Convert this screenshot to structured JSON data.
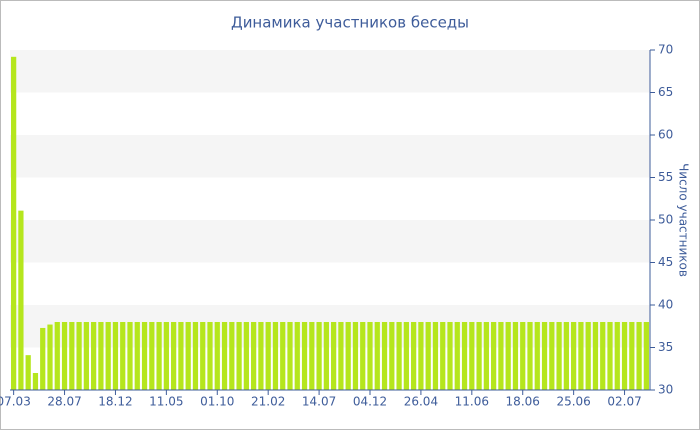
{
  "chart_data": {
    "type": "bar",
    "title": "Динамика участников беседы",
    "y_axis_label": "Число участников",
    "categories": [
      "07.03",
      null,
      null,
      null,
      null,
      null,
      null,
      "28.07",
      null,
      null,
      null,
      null,
      null,
      null,
      "18.12",
      null,
      null,
      null,
      null,
      null,
      null,
      "11.05",
      null,
      null,
      null,
      null,
      null,
      null,
      "01.10",
      null,
      null,
      null,
      null,
      null,
      null,
      "21.02",
      null,
      null,
      null,
      null,
      null,
      null,
      "14.07",
      null,
      null,
      null,
      null,
      null,
      null,
      "04.12",
      null,
      null,
      null,
      null,
      null,
      null,
      "26.04",
      null,
      null,
      null,
      null,
      null,
      null,
      "11.06",
      null,
      null,
      null,
      null,
      null,
      null,
      "18.06",
      null,
      null,
      null,
      null,
      null,
      null,
      "25.06",
      null,
      null,
      null,
      null,
      null,
      null,
      "02.07",
      null,
      null,
      null
    ],
    "values": [
      69.2,
      51.1,
      34.1,
      32.0,
      37.3,
      37.7,
      38,
      38,
      38,
      38,
      38,
      38,
      38,
      38,
      38,
      38,
      38,
      38,
      38,
      38,
      38,
      38,
      38,
      38,
      38,
      38,
      38,
      38,
      38,
      38,
      38,
      38,
      38,
      38,
      38,
      38,
      38,
      38,
      38,
      38,
      38,
      38,
      38,
      38,
      38,
      38,
      38,
      38,
      38,
      38,
      38,
      38,
      38,
      38,
      38,
      38,
      38,
      38,
      38,
      38,
      38,
      38,
      38,
      38,
      38,
      38,
      38,
      38,
      38,
      38,
      38,
      38,
      38,
      38,
      38,
      38,
      38,
      38,
      38,
      38,
      38,
      38,
      38,
      38,
      38,
      38,
      38,
      38
    ],
    "color": "#b5e61d",
    "ylim": [
      30,
      70
    ],
    "yticks": [
      30,
      35,
      40,
      45,
      50,
      55,
      60,
      65,
      70
    ],
    "grid": "bands",
    "y_axis_side": "right"
  }
}
